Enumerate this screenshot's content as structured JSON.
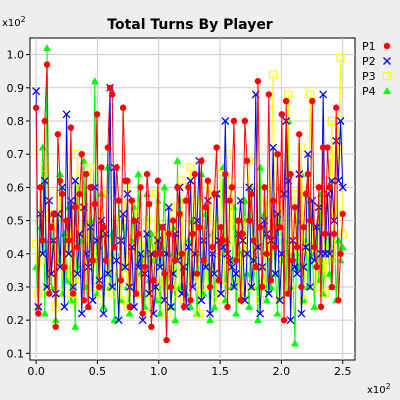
{
  "chart_data": {
    "type": "line",
    "title": "Total Turns By Player",
    "x_exponent_label": "x10",
    "x_exponent_power": "2",
    "y_exponent_label": "x10",
    "y_exponent_power": "2",
    "xlim": [
      -5,
      260
    ],
    "ylim": [
      8,
      105
    ],
    "x_ticks": [
      0,
      50,
      100,
      150,
      200,
      250
    ],
    "x_tick_labels": [
      "0.0",
      "0.5",
      "1.0",
      "1.5",
      "2.0",
      "2.5"
    ],
    "y_ticks": [
      10,
      20,
      30,
      40,
      50,
      60,
      70,
      80,
      90,
      100
    ],
    "y_tick_labels": [
      "0.1",
      "0.2",
      "0.3",
      "0.4",
      "0.5",
      "0.6",
      "0.7",
      "0.8",
      "0.9",
      "1.0"
    ],
    "grid": true,
    "legend_position": "right",
    "series": [
      {
        "name": "P1",
        "color": "#ff0000",
        "marker": "circle",
        "values": [
          84,
          22,
          60,
          44,
          80,
          97,
          28,
          48,
          52,
          18,
          76,
          62,
          58,
          36,
          50,
          44,
          78,
          28,
          54,
          42,
          58,
          70,
          26,
          64,
          24,
          60,
          38,
          55,
          82,
          30,
          66,
          48,
          38,
          72,
          90,
          88,
          42,
          66,
          56,
          32,
          84,
          62,
          62,
          24,
          56,
          50,
          28,
          46,
          60,
          22,
          36,
          64,
          55,
          18,
          32,
          40,
          62,
          40,
          48,
          34,
          14,
          46,
          30,
          50,
          38,
          60,
          52,
          40,
          24,
          56,
          60,
          26,
          46,
          64,
          34,
          48,
          68,
          38,
          54,
          62,
          30,
          42,
          58,
          72,
          32,
          48,
          44,
          64,
          24,
          56,
          60,
          80,
          38,
          50,
          26,
          46,
          80,
          68,
          50,
          58,
          44,
          36,
          92,
          48,
          30,
          60,
          40,
          88,
          32,
          56,
          42,
          70,
          48,
          82,
          20,
          86,
          28,
          64,
          38,
          54,
          42,
          76,
          30,
          48,
          58,
          64,
          50,
          86,
          42,
          36,
          60,
          24,
          72,
          46,
          72,
          60,
          30,
          46,
          84,
          26,
          40,
          52
        ]
      },
      {
        "name": "P2",
        "color": "#0000ff",
        "marker": "x",
        "values": [
          89,
          24,
          52,
          40,
          62,
          30,
          56,
          34,
          44,
          28,
          52,
          36,
          60,
          24,
          82,
          40,
          56,
          30,
          62,
          34,
          46,
          22,
          54,
          40,
          36,
          48,
          26,
          60,
          44,
          32,
          50,
          22,
          46,
          34,
          90,
          30,
          66,
          38,
          20,
          44,
          52,
          36,
          58,
          30,
          42,
          24,
          50,
          36,
          40,
          20,
          34,
          46,
          28,
          40,
          22,
          30,
          44,
          36,
          48,
          26,
          40,
          54,
          24,
          34,
          46,
          38,
          60,
          28,
          36,
          24,
          42,
          62,
          30,
          40,
          50,
          68,
          26,
          44,
          36,
          56,
          22,
          40,
          34,
          58,
          44,
          28,
          42,
          80,
          40,
          38,
          36,
          30,
          34,
          46,
          56,
          44,
          26,
          40,
          60,
          30,
          38,
          88,
          42,
          22,
          36,
          50,
          46,
          28,
          44,
          72,
          34,
          52,
          26,
          40,
          58,
          80,
          62,
          20,
          44,
          36,
          34,
          64,
          22,
          36,
          42,
          70,
          30,
          56,
          38,
          48,
          54,
          40,
          88,
          40,
          58,
          40,
          62,
          50,
          74,
          62,
          80,
          60
        ]
      },
      {
        "name": "P3",
        "color": "#ffff00",
        "marker": "square",
        "values": [
          43,
          28,
          38,
          50,
          66,
          30,
          52,
          34,
          42,
          24,
          48,
          58,
          36,
          28,
          44,
          32,
          50,
          26,
          38,
          70,
          40,
          32,
          54,
          36,
          44,
          66,
          30,
          40,
          52,
          26,
          38,
          48,
          30,
          58,
          40,
          28,
          44,
          34,
          50,
          26,
          36,
          60,
          24,
          46,
          30,
          40,
          54,
          28,
          34,
          44,
          36,
          50,
          22,
          40,
          30,
          58,
          26,
          40,
          30,
          48,
          22,
          38,
          54,
          28,
          34,
          50,
          30,
          62,
          26,
          40,
          44,
          66,
          32,
          56,
          40,
          22,
          38,
          46,
          30,
          44,
          60,
          36,
          50,
          26,
          40,
          64,
          30,
          40,
          70,
          44,
          62,
          36,
          48,
          30,
          40,
          26,
          50,
          38,
          68,
          30,
          44,
          60,
          36,
          26,
          40,
          30,
          56,
          40,
          60,
          94,
          42,
          54,
          26,
          44,
          38,
          66,
          88,
          30,
          44,
          58,
          50,
          40,
          72,
          26,
          58,
          42,
          88,
          40,
          48,
          30,
          54,
          36,
          60,
          28,
          44,
          56,
          80,
          38,
          52,
          70,
          99,
          46
        ]
      },
      {
        "name": "P4",
        "color": "#00ff00",
        "marker": "triangle",
        "values": [
          36,
          24,
          48,
          72,
          22,
          102,
          44,
          30,
          52,
          20,
          38,
          64,
          28,
          46,
          32,
          54,
          26,
          40,
          18,
          60,
          36,
          44,
          68,
          30,
          24,
          50,
          38,
          92,
          28,
          42,
          58,
          24,
          34,
          66,
          30,
          46,
          20,
          40,
          56,
          26,
          36,
          48,
          30,
          22,
          44,
          54,
          28,
          64,
          34,
          40,
          24,
          58,
          32,
          46,
          38,
          26,
          56,
          22,
          42,
          60,
          30,
          40,
          24,
          48,
          20,
          68,
          30,
          56,
          36,
          28,
          44,
          24,
          50,
          34,
          22,
          40,
          64,
          28,
          52,
          36,
          20,
          46,
          24,
          58,
          32,
          40,
          66,
          26,
          44,
          38,
          30,
          54,
          22,
          46,
          40,
          28,
          56,
          34,
          24,
          60,
          30,
          44,
          20,
          66,
          36,
          52,
          26,
          42,
          30,
          48,
          34,
          22,
          60,
          38,
          44,
          28,
          80,
          30,
          40,
          13,
          50,
          36,
          64,
          26,
          44,
          30,
          56,
          40,
          24,
          48,
          32,
          58,
          28,
          40,
          46,
          34,
          30,
          52,
          26,
          44,
          38,
          42
        ]
      }
    ]
  }
}
